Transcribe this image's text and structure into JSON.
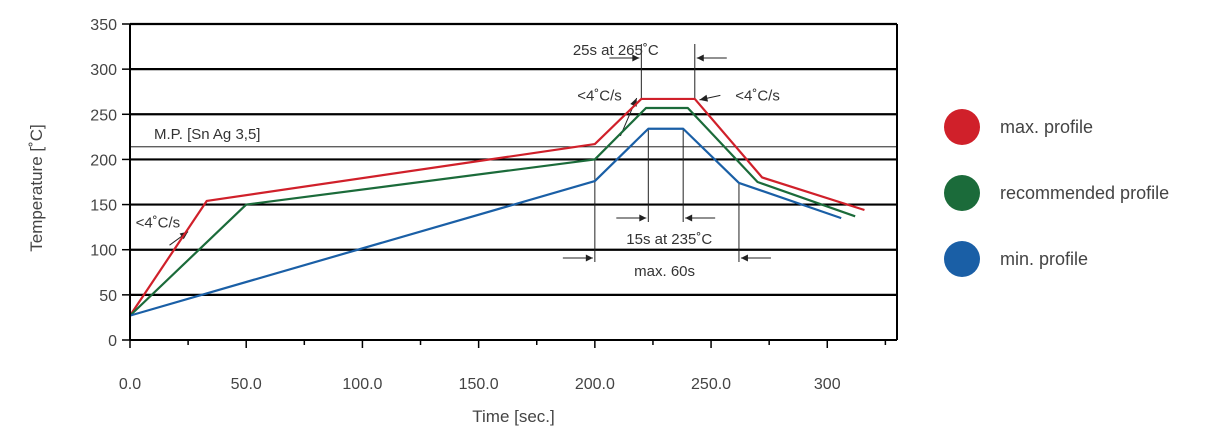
{
  "chart_data": {
    "type": "line",
    "title": "",
    "xlabel": "Time [sec.]",
    "ylabel": "Temperature [˚C]",
    "xlim": [
      0,
      330
    ],
    "ylim": [
      0,
      350
    ],
    "x_ticks": [
      "0.0",
      "50.0",
      "100.0",
      "150.0",
      "200.0",
      "250.0",
      "300"
    ],
    "x_tick_values": [
      0,
      50,
      100,
      150,
      200,
      250,
      300
    ],
    "y_ticks": [
      0,
      50,
      100,
      150,
      200,
      250,
      300,
      350
    ],
    "grid": "horizontal",
    "legend_position": "right",
    "series": [
      {
        "name": "max. profile",
        "color": "#d0202a",
        "x": [
          0,
          33,
          200,
          220,
          243,
          272,
          316
        ],
        "y": [
          27,
          154,
          217,
          267,
          267,
          180,
          144
        ]
      },
      {
        "name": "recommended profile",
        "color": "#1b6b3a",
        "x": [
          0,
          50,
          200,
          222,
          240,
          270,
          312
        ],
        "y": [
          27,
          150,
          200,
          257,
          257,
          175,
          137
        ]
      },
      {
        "name": "min. profile",
        "color": "#1a5fa6",
        "x": [
          0,
          200,
          223,
          238,
          262,
          306
        ],
        "y": [
          27,
          176,
          234,
          234,
          174,
          135
        ]
      }
    ],
    "reference_line": {
      "label": "M.P. [Sn Ag 3,5]",
      "y": 214
    },
    "annotations": {
      "ramp_up_top": "<4˚C/s",
      "ramp_down_top": "<4˚C/s",
      "ramp_up_bottom": "<4˚C/s",
      "peak_time_max": "25s at 265˚C",
      "peak_time_min": "15s at 235˚C",
      "max_duration": "max. 60s"
    }
  }
}
